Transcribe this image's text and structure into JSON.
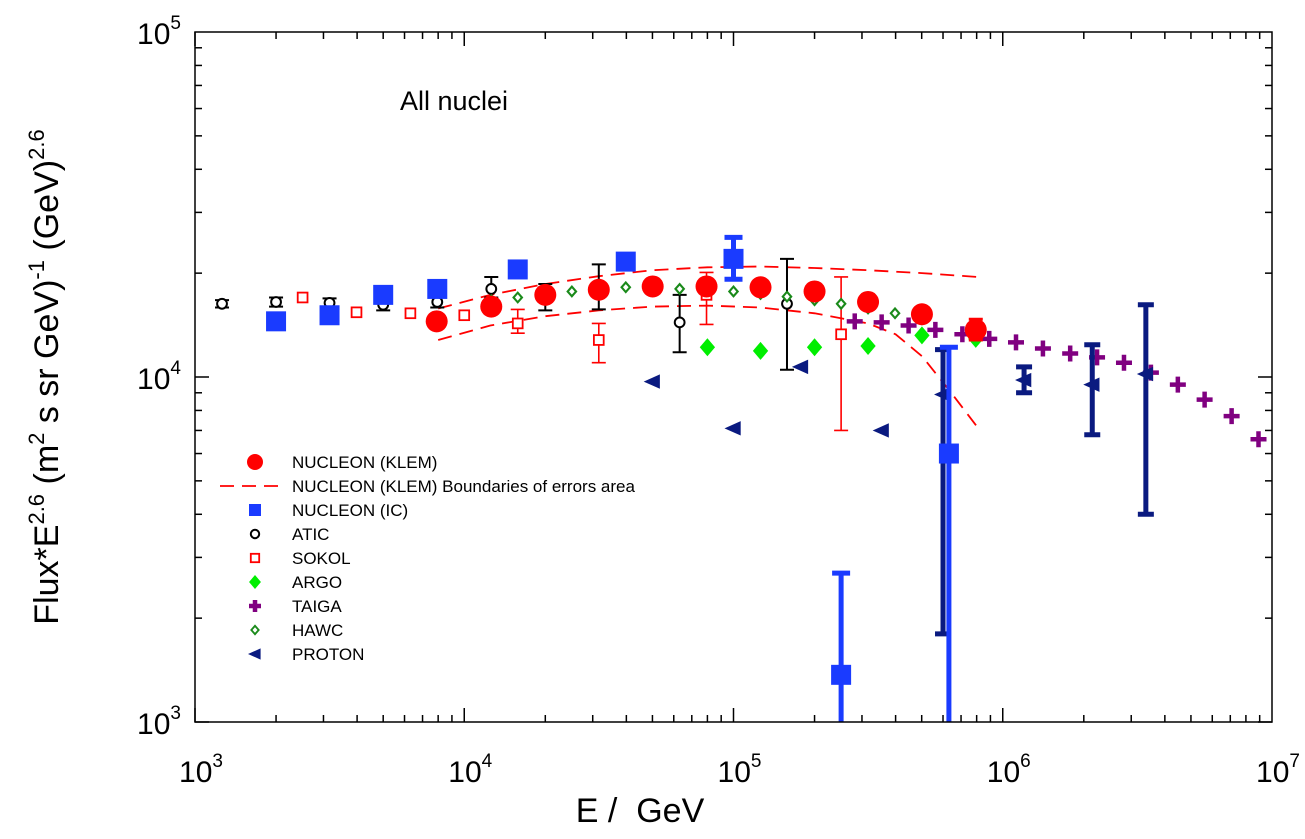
{
  "chart_data": {
    "type": "scatter",
    "title": "",
    "annotation": "All nuclei",
    "xlabel": "E /  GeV",
    "ylabel": "Flux*E^2.6 (m^2 s sr GeV)^-1 (GeV)^2.6",
    "ylabel_parts": {
      "flux": "Flux*E",
      "flux_exp": "2.6",
      "units_a": " (m",
      "units_a_exp": "2",
      "units_b": " s sr GeV)",
      "units_b_exp": "-1",
      "units_c": " (GeV)",
      "units_c_exp": "2.6"
    },
    "xscale": "log",
    "yscale": "log",
    "xlim": [
      1000,
      10000000
    ],
    "ylim": [
      1000,
      100000
    ],
    "x_ticks": [
      {
        "base": "10",
        "exp": "3"
      },
      {
        "base": "10",
        "exp": "4"
      },
      {
        "base": "10",
        "exp": "5"
      },
      {
        "base": "10",
        "exp": "6"
      },
      {
        "base": "10",
        "exp": "7"
      }
    ],
    "y_ticks": [
      {
        "base": "10",
        "exp": "3"
      },
      {
        "base": "10",
        "exp": "4"
      },
      {
        "base": "10",
        "exp": "5"
      }
    ],
    "grid": false,
    "legend_position": "lower-left",
    "series": [
      {
        "name": "NUCLEON (KLEM)",
        "marker": "circle-filled",
        "color": "#ff0000",
        "points": [
          [
            7900,
            14500
          ],
          [
            12600,
            16000
          ],
          [
            20000,
            17300
          ],
          [
            31600,
            17900
          ],
          [
            50100,
            18300
          ],
          [
            79400,
            18300
          ],
          [
            126000,
            18200
          ],
          [
            200000,
            17700
          ],
          [
            316000,
            16500
          ],
          [
            501000,
            15200
          ],
          [
            794000,
            13700
          ]
        ],
        "errors": [
          [
            7900,
            14000,
            15000
          ],
          [
            12600,
            15400,
            16600
          ],
          [
            20000,
            16700,
            17900
          ],
          [
            31600,
            17300,
            18500
          ],
          [
            50100,
            17800,
            18800
          ],
          [
            79400,
            17700,
            18900
          ],
          [
            126000,
            17600,
            18800
          ],
          [
            200000,
            17100,
            18300
          ],
          [
            316000,
            15900,
            17100
          ],
          [
            501000,
            14600,
            15800
          ],
          [
            794000,
            12800,
            14700
          ]
        ]
      },
      {
        "name": "NUCLEON (KLEM) Boundaries of errors area",
        "marker": "dashed-line",
        "color": "#ff0000",
        "upper": [
          [
            8000,
            15800
          ],
          [
            12500,
            17300
          ],
          [
            20000,
            18600
          ],
          [
            31600,
            19600
          ],
          [
            50000,
            20400
          ],
          [
            80000,
            20800
          ],
          [
            126000,
            20900
          ],
          [
            200000,
            20700
          ],
          [
            316000,
            20400
          ],
          [
            501000,
            20000
          ],
          [
            800000,
            19500
          ]
        ],
        "lower": [
          [
            8000,
            12800
          ],
          [
            12500,
            14100
          ],
          [
            20000,
            15000
          ],
          [
            31600,
            15600
          ],
          [
            50000,
            16000
          ],
          [
            80000,
            16100
          ],
          [
            126000,
            15900
          ],
          [
            200000,
            15300
          ],
          [
            316000,
            14300
          ],
          [
            400000,
            13300
          ],
          [
            501000,
            11500
          ],
          [
            630000,
            9200
          ],
          [
            800000,
            7200
          ]
        ]
      },
      {
        "name": "NUCLEON (IC)",
        "marker": "square-filled",
        "color": "#1a3bff",
        "points": [
          [
            2000,
            14500
          ],
          [
            3160,
            15100
          ],
          [
            5000,
            17300
          ],
          [
            7940,
            18000
          ],
          [
            15800,
            20500
          ],
          [
            39800,
            21600
          ],
          [
            100000,
            22000
          ],
          [
            251000,
            1370
          ],
          [
            631000,
            6000
          ]
        ],
        "errors": [
          [
            2000,
            14000,
            15000
          ],
          [
            3160,
            14600,
            15600
          ],
          [
            5000,
            16700,
            17900
          ],
          [
            7940,
            17400,
            18700
          ],
          [
            15800,
            19800,
            21300
          ],
          [
            39800,
            20800,
            22500
          ],
          [
            100000,
            19200,
            25400
          ],
          [
            251000,
            800,
            2700
          ],
          [
            631000,
            800,
            12200
          ]
        ]
      },
      {
        "name": "ATIC",
        "marker": "circle-open",
        "color": "#000000",
        "points": [
          [
            1260,
            16300
          ],
          [
            2000,
            16500
          ],
          [
            3160,
            16400
          ],
          [
            5000,
            16200
          ],
          [
            7940,
            16500
          ],
          [
            12600,
            18000
          ],
          [
            20000,
            17000
          ],
          [
            31600,
            18000
          ],
          [
            63100,
            14400
          ],
          [
            158000,
            16300
          ]
        ],
        "errors": [
          [
            1260,
            15900,
            16700
          ],
          [
            2000,
            16000,
            17000
          ],
          [
            3160,
            15900,
            16900
          ],
          [
            5000,
            15600,
            16800
          ],
          [
            7940,
            15900,
            17100
          ],
          [
            12600,
            17000,
            19500
          ],
          [
            20000,
            15600,
            18600
          ],
          [
            31600,
            15700,
            21200
          ],
          [
            63100,
            11800,
            17300
          ],
          [
            158000,
            10500,
            22000
          ]
        ]
      },
      {
        "name": "SOKOL",
        "marker": "square-open",
        "color": "#ff0000",
        "points": [
          [
            2510,
            17000
          ],
          [
            3980,
            15400
          ],
          [
            6310,
            15300
          ],
          [
            10000,
            15100
          ],
          [
            15800,
            14300
          ],
          [
            31600,
            12800
          ],
          [
            79400,
            17300
          ],
          [
            251000,
            13300
          ]
        ],
        "errors": [
          [
            15800,
            13400,
            15700
          ],
          [
            31600,
            11000,
            14300
          ],
          [
            79400,
            14200,
            20100
          ],
          [
            251000,
            7000,
            19500
          ]
        ]
      },
      {
        "name": "ARGO",
        "marker": "diamond-filled",
        "color": "#00ee00",
        "points": [
          [
            80000,
            12200
          ],
          [
            126000,
            11900
          ],
          [
            200000,
            12200
          ],
          [
            316000,
            12300
          ],
          [
            501000,
            13200
          ],
          [
            794000,
            12900
          ]
        ],
        "errors": []
      },
      {
        "name": "TAIGA",
        "marker": "plus",
        "color": "#800080",
        "points": [
          [
            282000,
            14500
          ],
          [
            355000,
            14400
          ],
          [
            447000,
            14100
          ],
          [
            562000,
            13700
          ],
          [
            708000,
            13300
          ],
          [
            891000,
            12900
          ],
          [
            1120000,
            12600
          ],
          [
            1410000,
            12100
          ],
          [
            1780000,
            11700
          ],
          [
            2240000,
            11400
          ],
          [
            2820000,
            11000
          ],
          [
            3550000,
            10300
          ],
          [
            4470000,
            9500
          ],
          [
            5620000,
            8600
          ],
          [
            7080000,
            7700
          ],
          [
            8910000,
            6600
          ]
        ],
        "errors": []
      },
      {
        "name": "HAWC",
        "marker": "diamond-open",
        "color": "#1a8a1a",
        "points": [
          [
            12600,
            16700
          ],
          [
            15800,
            17000
          ],
          [
            20000,
            17300
          ],
          [
            25100,
            17700
          ],
          [
            31600,
            18000
          ],
          [
            39800,
            18200
          ],
          [
            50100,
            18200
          ],
          [
            63100,
            18000
          ],
          [
            79400,
            17900
          ],
          [
            100000,
            17700
          ],
          [
            126000,
            17400
          ],
          [
            158000,
            17100
          ],
          [
            200000,
            16700
          ],
          [
            251000,
            16300
          ],
          [
            316000,
            15800
          ],
          [
            398000,
            15300
          ],
          [
            501000,
            14700
          ]
        ],
        "errors": []
      },
      {
        "name": "PROTON",
        "marker": "triangle-left",
        "color": "#0a1a80",
        "points": [
          [
            50100,
            9700
          ],
          [
            100000,
            7100
          ],
          [
            178000,
            10700
          ],
          [
            355000,
            7000
          ],
          [
            600000,
            8900
          ],
          [
            1200000,
            9800
          ],
          [
            2150000,
            9500
          ],
          [
            3400000,
            10200
          ]
        ],
        "errors": [
          [
            600000,
            1800,
            12000
          ],
          [
            1200000,
            9000,
            10700
          ],
          [
            2150000,
            6800,
            12400
          ],
          [
            3400000,
            4000,
            16200
          ]
        ]
      }
    ]
  }
}
